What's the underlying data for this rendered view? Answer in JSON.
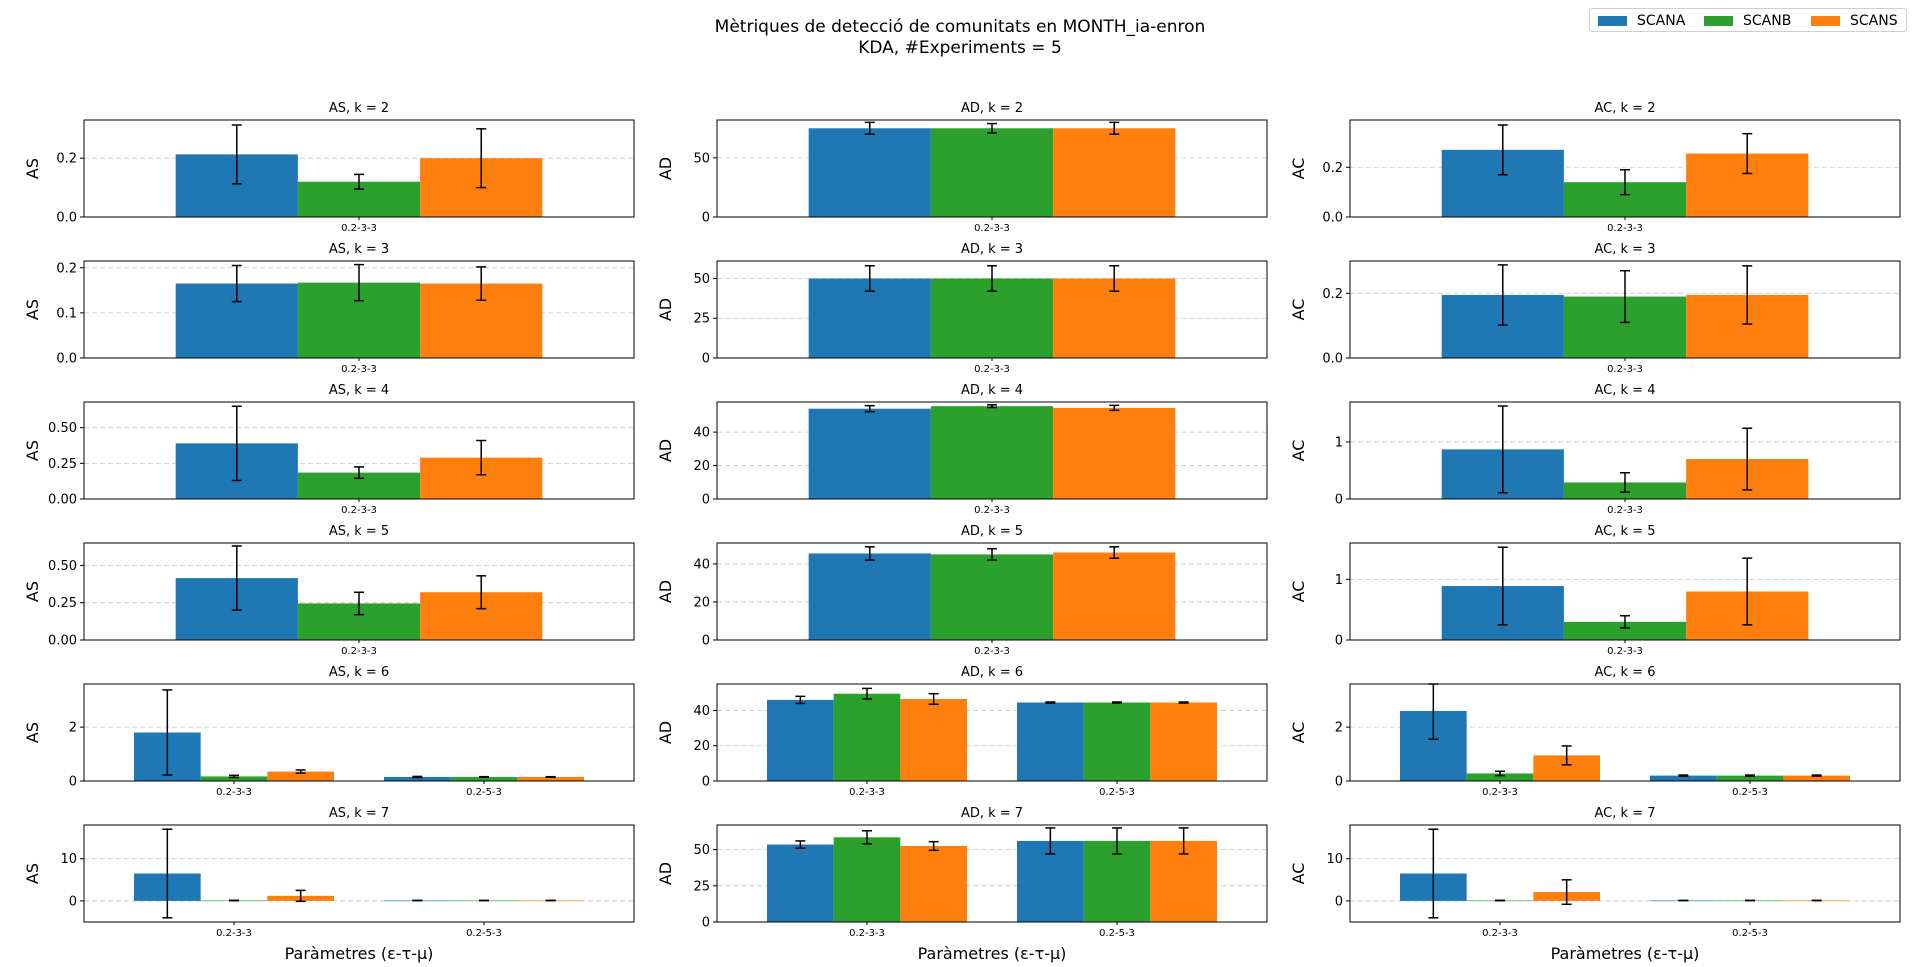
{
  "title_line1": "Mètriques de detecció de comunitats en MONTH_ia-enron",
  "title_line2": "KDA, #Experiments = 5",
  "xlabel": "Paràmetres (ε-τ-μ)",
  "legend": [
    {
      "name": "SCANA",
      "color": "#1f77b4"
    },
    {
      "name": "SCANB",
      "color": "#2ca02c"
    },
    {
      "name": "SCANS",
      "color": "#ff7f0e"
    }
  ],
  "colors": {
    "SCANA": "#1f77b4",
    "SCANB": "#2ca02c",
    "SCANS": "#ff7f0e",
    "grid": "#b0b0b0"
  },
  "chart_data": [
    {
      "type": "bar",
      "title": "AS, k = 2",
      "ylabel": "AS",
      "categories": [
        "0.2-3-3"
      ],
      "ylim": [
        0,
        0.33
      ],
      "yticks": [
        0.0,
        0.2
      ],
      "ytick_labels": [
        "0.0",
        "0.2"
      ],
      "grid": "y-dashed",
      "series": [
        {
          "name": "SCANA",
          "values": [
            0.213
          ],
          "errors": [
            0.1
          ]
        },
        {
          "name": "SCANB",
          "values": [
            0.12
          ],
          "errors": [
            0.025
          ]
        },
        {
          "name": "SCANS",
          "values": [
            0.2
          ],
          "errors": [
            0.1
          ]
        }
      ]
    },
    {
      "type": "bar",
      "title": "AD, k = 2",
      "ylabel": "AD",
      "categories": [
        "0.2-3-3"
      ],
      "ylim": [
        0,
        82
      ],
      "yticks": [
        0,
        50
      ],
      "ytick_labels": [
        "0",
        "50"
      ],
      "grid": "y-dashed",
      "series": [
        {
          "name": "SCANA",
          "values": [
            75
          ],
          "errors": [
            5
          ]
        },
        {
          "name": "SCANB",
          "values": [
            75
          ],
          "errors": [
            4
          ]
        },
        {
          "name": "SCANS",
          "values": [
            75
          ],
          "errors": [
            5
          ]
        }
      ]
    },
    {
      "type": "bar",
      "title": "AC, k = 2",
      "ylabel": "AC",
      "categories": [
        "0.2-3-3"
      ],
      "ylim": [
        0,
        0.39
      ],
      "yticks": [
        0.0,
        0.2
      ],
      "ytick_labels": [
        "0.0",
        "0.2"
      ],
      "grid": "y-dashed",
      "series": [
        {
          "name": "SCANA",
          "values": [
            0.27
          ],
          "errors": [
            0.1
          ]
        },
        {
          "name": "SCANB",
          "values": [
            0.14
          ],
          "errors": [
            0.05
          ]
        },
        {
          "name": "SCANS",
          "values": [
            0.255
          ],
          "errors": [
            0.08
          ]
        }
      ]
    },
    {
      "type": "bar",
      "title": "AS, k = 3",
      "ylabel": "AS",
      "categories": [
        "0.2-3-3"
      ],
      "ylim": [
        0,
        0.215
      ],
      "yticks": [
        0.0,
        0.1,
        0.2
      ],
      "ytick_labels": [
        "0.0",
        "0.1",
        "0.2"
      ],
      "grid": "y-dashed",
      "series": [
        {
          "name": "SCANA",
          "values": [
            0.165
          ],
          "errors": [
            0.04
          ]
        },
        {
          "name": "SCANB",
          "values": [
            0.167
          ],
          "errors": [
            0.04
          ]
        },
        {
          "name": "SCANS",
          "values": [
            0.165
          ],
          "errors": [
            0.037
          ]
        }
      ]
    },
    {
      "type": "bar",
      "title": "AD, k = 3",
      "ylabel": "AD",
      "categories": [
        "0.2-3-3"
      ],
      "ylim": [
        0,
        61
      ],
      "yticks": [
        0,
        25,
        50
      ],
      "ytick_labels": [
        "0",
        "25",
        "50"
      ],
      "grid": "y-dashed",
      "series": [
        {
          "name": "SCANA",
          "values": [
            50
          ],
          "errors": [
            8
          ]
        },
        {
          "name": "SCANB",
          "values": [
            50
          ],
          "errors": [
            8
          ]
        },
        {
          "name": "SCANS",
          "values": [
            50
          ],
          "errors": [
            8
          ]
        }
      ]
    },
    {
      "type": "bar",
      "title": "AC, k = 3",
      "ylabel": "AC",
      "categories": [
        "0.2-3-3"
      ],
      "ylim": [
        0,
        0.3
      ],
      "yticks": [
        0.0,
        0.2
      ],
      "ytick_labels": [
        "0.0",
        "0.2"
      ],
      "grid": "y-dashed",
      "series": [
        {
          "name": "SCANA",
          "values": [
            0.195
          ],
          "errors": [
            0.093
          ]
        },
        {
          "name": "SCANB",
          "values": [
            0.19
          ],
          "errors": [
            0.08
          ]
        },
        {
          "name": "SCANS",
          "values": [
            0.195
          ],
          "errors": [
            0.09
          ]
        }
      ]
    },
    {
      "type": "bar",
      "title": "AS, k = 4",
      "ylabel": "AS",
      "categories": [
        "0.2-3-3"
      ],
      "ylim": [
        0,
        0.68
      ],
      "yticks": [
        0.0,
        0.25,
        0.5
      ],
      "ytick_labels": [
        "0.00",
        "0.25",
        "0.50"
      ],
      "grid": "y-dashed",
      "series": [
        {
          "name": "SCANA",
          "values": [
            0.39
          ],
          "errors": [
            0.26
          ]
        },
        {
          "name": "SCANB",
          "values": [
            0.185
          ],
          "errors": [
            0.04
          ]
        },
        {
          "name": "SCANS",
          "values": [
            0.29
          ],
          "errors": [
            0.12
          ]
        }
      ]
    },
    {
      "type": "bar",
      "title": "AD, k = 4",
      "ylabel": "AD",
      "categories": [
        "0.2-3-3"
      ],
      "ylim": [
        0,
        58
      ],
      "yticks": [
        0,
        20,
        40
      ],
      "ytick_labels": [
        "0",
        "20",
        "40"
      ],
      "grid": "y-dashed",
      "series": [
        {
          "name": "SCANA",
          "values": [
            54
          ],
          "errors": [
            1.8
          ]
        },
        {
          "name": "SCANB",
          "values": [
            55.5
          ],
          "errors": [
            0.8
          ]
        },
        {
          "name": "SCANS",
          "values": [
            54.5
          ],
          "errors": [
            1.5
          ]
        }
      ]
    },
    {
      "type": "bar",
      "title": "AC, k = 4",
      "ylabel": "AC",
      "categories": [
        "0.2-3-3"
      ],
      "ylim": [
        0,
        1.7
      ],
      "yticks": [
        0,
        1
      ],
      "ytick_labels": [
        "0",
        "1"
      ],
      "grid": "y-dashed",
      "series": [
        {
          "name": "SCANA",
          "values": [
            0.87
          ],
          "errors": [
            0.76
          ]
        },
        {
          "name": "SCANB",
          "values": [
            0.29
          ],
          "errors": [
            0.17
          ]
        },
        {
          "name": "SCANS",
          "values": [
            0.7
          ],
          "errors": [
            0.54
          ]
        }
      ]
    },
    {
      "type": "bar",
      "title": "AS, k = 5",
      "ylabel": "AS",
      "categories": [
        "0.2-3-3"
      ],
      "ylim": [
        0,
        0.65
      ],
      "yticks": [
        0.0,
        0.25,
        0.5
      ],
      "ytick_labels": [
        "0.00",
        "0.25",
        "0.50"
      ],
      "grid": "y-dashed",
      "series": [
        {
          "name": "SCANA",
          "values": [
            0.415
          ],
          "errors": [
            0.215
          ]
        },
        {
          "name": "SCANB",
          "values": [
            0.245
          ],
          "errors": [
            0.075
          ]
        },
        {
          "name": "SCANS",
          "values": [
            0.32
          ],
          "errors": [
            0.11
          ]
        }
      ]
    },
    {
      "type": "bar",
      "title": "AD, k = 5",
      "ylabel": "AD",
      "categories": [
        "0.2-3-3"
      ],
      "ylim": [
        0,
        51
      ],
      "yticks": [
        0,
        20,
        40
      ],
      "ytick_labels": [
        "0",
        "20",
        "40"
      ],
      "grid": "y-dashed",
      "series": [
        {
          "name": "SCANA",
          "values": [
            45.5
          ],
          "errors": [
            3.5
          ]
        },
        {
          "name": "SCANB",
          "values": [
            45
          ],
          "errors": [
            3
          ]
        },
        {
          "name": "SCANS",
          "values": [
            46
          ],
          "errors": [
            3
          ]
        }
      ]
    },
    {
      "type": "bar",
      "title": "AC, k = 5",
      "ylabel": "AC",
      "categories": [
        "0.2-3-3"
      ],
      "ylim": [
        0,
        1.6
      ],
      "yticks": [
        0,
        1
      ],
      "ytick_labels": [
        "0",
        "1"
      ],
      "grid": "y-dashed",
      "series": [
        {
          "name": "SCANA",
          "values": [
            0.89
          ],
          "errors": [
            0.64
          ]
        },
        {
          "name": "SCANB",
          "values": [
            0.3
          ],
          "errors": [
            0.1
          ]
        },
        {
          "name": "SCANS",
          "values": [
            0.8
          ],
          "errors": [
            0.55
          ]
        }
      ]
    },
    {
      "type": "bar",
      "title": "AS, k = 6",
      "ylabel": "AS",
      "categories": [
        "0.2-3-3",
        "0.2-5-3"
      ],
      "ylim": [
        0,
        3.6
      ],
      "yticks": [
        0,
        2
      ],
      "ytick_labels": [
        "0",
        "2"
      ],
      "grid": "y-dashed",
      "series": [
        {
          "name": "SCANA",
          "values": [
            1.8,
            0.15
          ],
          "errors": [
            1.58,
            0.02
          ]
        },
        {
          "name": "SCANB",
          "values": [
            0.17,
            0.15
          ],
          "errors": [
            0.04,
            0.01
          ]
        },
        {
          "name": "SCANS",
          "values": [
            0.35,
            0.15
          ],
          "errors": [
            0.06,
            0.01
          ]
        }
      ]
    },
    {
      "type": "bar",
      "title": "AD, k = 6",
      "ylabel": "AD",
      "categories": [
        "0.2-3-3",
        "0.2-5-3"
      ],
      "ylim": [
        0,
        55
      ],
      "yticks": [
        0,
        20,
        40
      ],
      "ytick_labels": [
        "0",
        "20",
        "40"
      ],
      "grid": "y-dashed",
      "series": [
        {
          "name": "SCANA",
          "values": [
            46,
            44.5
          ],
          "errors": [
            2,
            0.3
          ]
        },
        {
          "name": "SCANB",
          "values": [
            49.5,
            44.5
          ],
          "errors": [
            3,
            0.3
          ]
        },
        {
          "name": "SCANS",
          "values": [
            46.5,
            44.5
          ],
          "errors": [
            3,
            0.3
          ]
        }
      ]
    },
    {
      "type": "bar",
      "title": "AC, k = 6",
      "ylabel": "AC",
      "categories": [
        "0.2-3-3",
        "0.2-5-3"
      ],
      "ylim": [
        0,
        3.6
      ],
      "yticks": [
        0,
        2
      ],
      "ytick_labels": [
        "0",
        "2"
      ],
      "grid": "y-dashed",
      "series": [
        {
          "name": "SCANA",
          "values": [
            2.6,
            0.2
          ],
          "errors": [
            1.05,
            0.02
          ]
        },
        {
          "name": "SCANB",
          "values": [
            0.28,
            0.2
          ],
          "errors": [
            0.08,
            0.02
          ]
        },
        {
          "name": "SCANS",
          "values": [
            0.95,
            0.2
          ],
          "errors": [
            0.35,
            0.02
          ]
        }
      ]
    },
    {
      "type": "bar",
      "title": "AS, k = 7",
      "ylabel": "AS",
      "categories": [
        "0.2-3-3",
        "0.2-5-3"
      ],
      "ylim": [
        -5,
        18
      ],
      "yticks": [
        0,
        10
      ],
      "ytick_labels": [
        "0",
        "10"
      ],
      "grid": "y-dashed",
      "series": [
        {
          "name": "SCANA",
          "values": [
            6.5,
            0.1
          ],
          "errors": [
            10.5,
            0.02
          ]
        },
        {
          "name": "SCANB",
          "values": [
            0.1,
            0.1
          ],
          "errors": [
            0.05,
            0.02
          ]
        },
        {
          "name": "SCANS",
          "values": [
            1.2,
            0.1
          ],
          "errors": [
            1.3,
            0.02
          ]
        }
      ]
    },
    {
      "type": "bar",
      "title": "AD, k = 7",
      "ylabel": "AD",
      "categories": [
        "0.2-3-3",
        "0.2-5-3"
      ],
      "ylim": [
        0,
        67
      ],
      "yticks": [
        0,
        25,
        50
      ],
      "ytick_labels": [
        "0",
        "25",
        "50"
      ],
      "grid": "y-dashed",
      "series": [
        {
          "name": "SCANA",
          "values": [
            53.5,
            56
          ],
          "errors": [
            2.5,
            9
          ]
        },
        {
          "name": "SCANB",
          "values": [
            58.5,
            56
          ],
          "errors": [
            4.5,
            9
          ]
        },
        {
          "name": "SCANS",
          "values": [
            52.5,
            56
          ],
          "errors": [
            3,
            9
          ]
        }
      ]
    },
    {
      "type": "bar",
      "title": "AC, k = 7",
      "ylabel": "AC",
      "categories": [
        "0.2-3-3",
        "0.2-5-3"
      ],
      "ylim": [
        -5,
        18
      ],
      "yticks": [
        0,
        10
      ],
      "ytick_labels": [
        "0",
        "10"
      ],
      "grid": "y-dashed",
      "series": [
        {
          "name": "SCANA",
          "values": [
            6.5,
            0.1
          ],
          "errors": [
            10.5,
            0.02
          ]
        },
        {
          "name": "SCANB",
          "values": [
            0.1,
            0.1
          ],
          "errors": [
            0.05,
            0.02
          ]
        },
        {
          "name": "SCANS",
          "values": [
            2.1,
            0.1
          ],
          "errors": [
            2.9,
            0.02
          ]
        }
      ]
    }
  ]
}
